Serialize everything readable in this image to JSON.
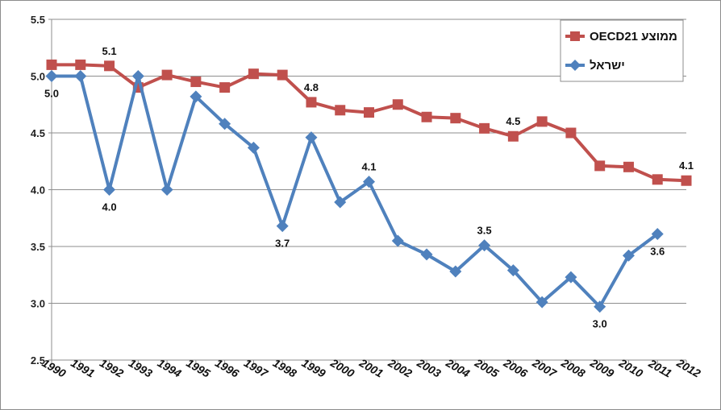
{
  "chart_data": {
    "type": "line",
    "categories": [
      "1990",
      "1991",
      "1992",
      "1993",
      "1994",
      "1995",
      "1996",
      "1997",
      "1998",
      "1999",
      "2000",
      "2001",
      "2002",
      "2003",
      "2004",
      "2005",
      "2006",
      "2007",
      "2008",
      "2009",
      "2010",
      "2011",
      "2012"
    ],
    "ylim": [
      2.5,
      5.5
    ],
    "yticks": [
      "2.5",
      "3.0",
      "3.5",
      "4.0",
      "4.5",
      "5.0",
      "5.5"
    ],
    "grid": true,
    "legend_position": "top-right",
    "series": [
      {
        "name": "ממוצע OECD21",
        "color": "#c0504d",
        "marker": "square",
        "values": [
          5.1,
          5.1,
          5.09,
          4.9,
          5.01,
          4.95,
          4.9,
          5.02,
          5.01,
          4.77,
          4.7,
          4.68,
          4.75,
          4.64,
          4.63,
          4.54,
          4.47,
          4.6,
          4.5,
          4.21,
          4.2,
          4.09,
          4.08
        ],
        "labels": [
          {
            "index": 2,
            "text": "5.1",
            "pos": "above"
          },
          {
            "index": 9,
            "text": "4.8",
            "pos": "above"
          },
          {
            "index": 16,
            "text": "4.5",
            "pos": "above"
          },
          {
            "index": 22,
            "text": "4.1",
            "pos": "above"
          }
        ]
      },
      {
        "name": "ישראל",
        "color": "#4f81bd",
        "marker": "diamond",
        "values": [
          5.0,
          5.0,
          4.0,
          5.0,
          4.0,
          4.82,
          4.58,
          4.37,
          3.68,
          4.46,
          3.89,
          4.07,
          3.55,
          3.43,
          3.28,
          3.51,
          3.29,
          3.01,
          3.23,
          2.97,
          3.42,
          3.61,
          null
        ],
        "labels": [
          {
            "index": 0,
            "text": "5.0",
            "pos": "below"
          },
          {
            "index": 2,
            "text": "4.0",
            "pos": "below"
          },
          {
            "index": 8,
            "text": "3.7",
            "pos": "below"
          },
          {
            "index": 11,
            "text": "4.1",
            "pos": "above"
          },
          {
            "index": 15,
            "text": "3.5",
            "pos": "above"
          },
          {
            "index": 19,
            "text": "3.0",
            "pos": "below"
          },
          {
            "index": 21,
            "text": "3.6",
            "pos": "below"
          }
        ]
      }
    ]
  }
}
